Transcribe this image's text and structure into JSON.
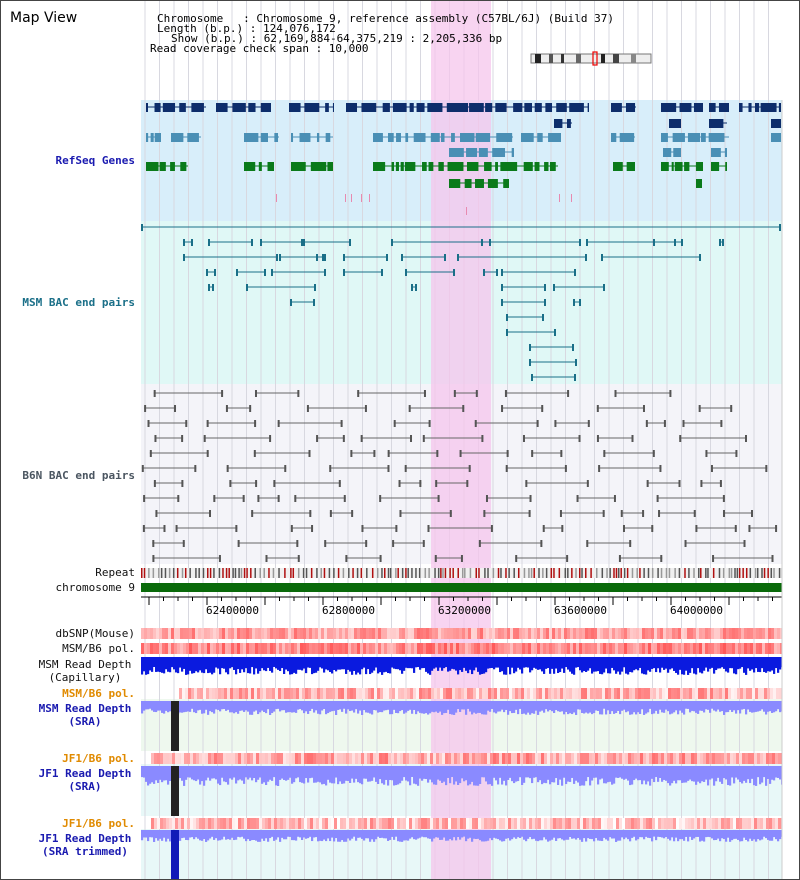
{
  "page": {
    "title": "Map View"
  },
  "header": {
    "line1": "Chromosome   : Chromosome 9, reference assembly (C57BL/6J) (Build 37)",
    "line2": "Length (b.p.) : 124,076,172",
    "line3": "Show (b.p.) : 62,169,884-64,375,219 : 2,205,336 bp",
    "line4": "Read coverage check span : 10,000"
  },
  "tracks": {
    "refseq": "RefSeq Genes",
    "msm_bac": "MSM BAC end pairs",
    "b6n_bac": "B6N BAC end pairs",
    "repeat": "Repeat",
    "chromosome": "chromosome 9",
    "dbsnp": "dbSNP(Mouse)",
    "msm_b6_pol_1": "MSM/B6 pol.",
    "msm_read_depth_cap_1": "MSM Read Depth",
    "msm_read_depth_cap_2": "(Capillary)",
    "msm_b6_pol_2": "MSM/B6 pol.",
    "msm_read_depth_sra_1": "MSM Read Depth",
    "msm_read_depth_sra_2": "(SRA)",
    "jf1_b6_pol_1": "JF1/B6 pol.",
    "jf1_read_depth_sra_1": "JF1 Read Depth",
    "jf1_read_depth_sra_2": "(SRA)",
    "jf1_b6_pol_2": "JF1/B6 pol.",
    "jf1_read_depth_trim_1": "JF1 Read Depth",
    "jf1_read_depth_trim_2": "(SRA trimmed)"
  },
  "axis": {
    "ticks": [
      "62400000",
      "62800000",
      "63200000",
      "63600000",
      "64000000"
    ]
  },
  "colors": {
    "highlight": "#f5c6ec",
    "refseq_bg": "#d8eefa",
    "msm_bg": "#e0f8f6",
    "gene_dark": "#0d2d6b",
    "gene_mid": "#4a8fb5",
    "gene_green": "#0a7a1a",
    "chromosome_bar": "#0a6a0a",
    "depth_blue": "#0a1adf",
    "depth_light": "#8a8aff"
  }
}
